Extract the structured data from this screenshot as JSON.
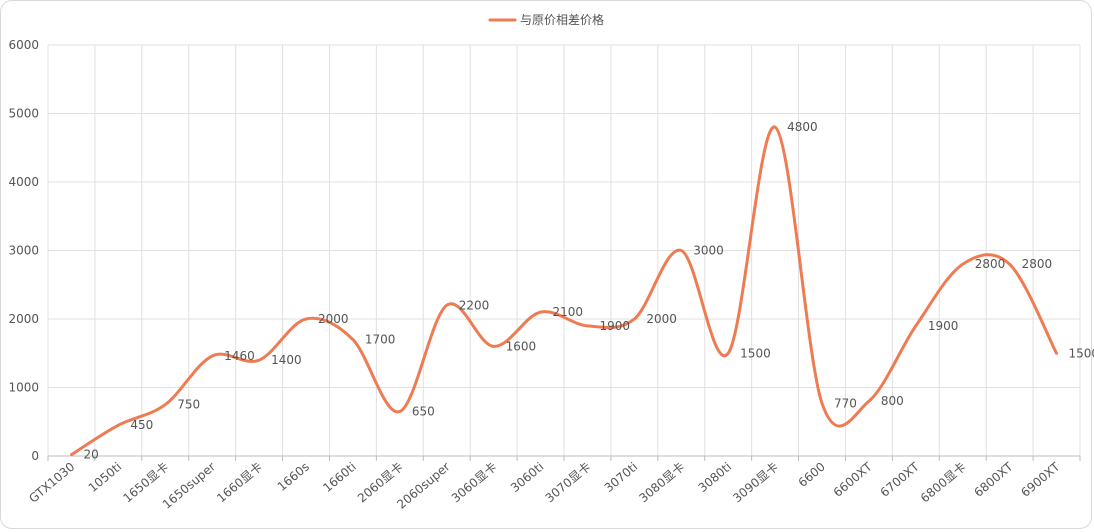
{
  "chart_data": {
    "type": "line",
    "smooth": true,
    "legend": {
      "position": "top-center"
    },
    "grid": true,
    "series": [
      {
        "name": "与原价相差价格",
        "color": "#EE7B52",
        "values": [
          20,
          450,
          750,
          1460,
          1400,
          2000,
          1700,
          650,
          2200,
          1600,
          2100,
          1900,
          2000,
          3000,
          1500,
          4800,
          770,
          800,
          1900,
          2800,
          2800,
          1500
        ]
      }
    ],
    "categories": [
      "GTX1030",
      "1050ti",
      "1650显卡",
      "1650super",
      "1660显卡",
      "1660s",
      "1660ti",
      "2060显卡",
      "2060super",
      "3060显卡",
      "3060ti",
      "3070显卡",
      "3070ti",
      "3080显卡",
      "3080ti",
      "3090显卡",
      "6600",
      "6600XT",
      "6700XT",
      "6800显卡",
      "6800XT",
      "6900XT"
    ],
    "ylim": [
      0,
      6000
    ],
    "yticks": [
      0,
      1000,
      2000,
      3000,
      4000,
      5000,
      6000
    ]
  }
}
